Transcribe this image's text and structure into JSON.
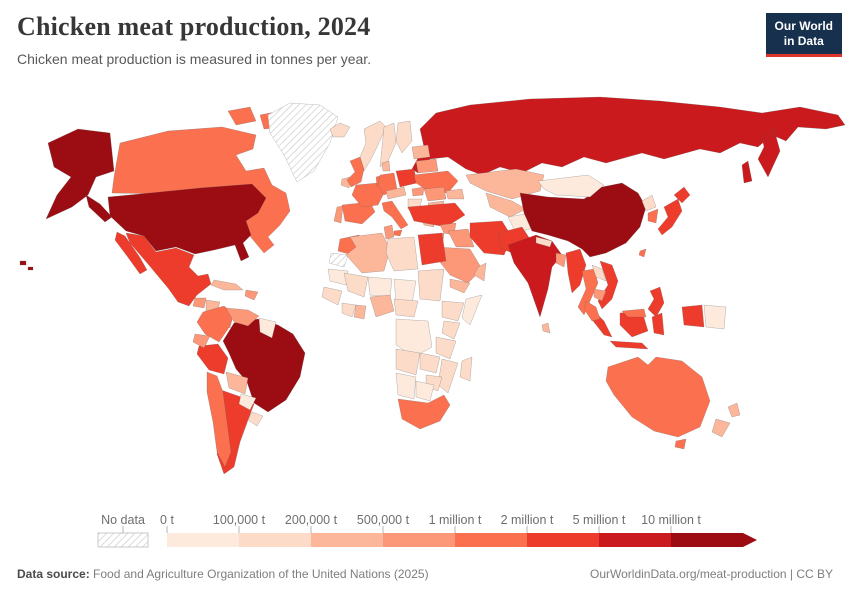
{
  "header": {
    "logo": {
      "line1": "Our World",
      "line2": "in Data",
      "bg_color": "#16304d",
      "accent_color": "#dd352b"
    }
  },
  "chart_data": {
    "type": "choropleth_world_map",
    "title": "Chicken meat production, 2024",
    "subtitle": "Chicken meat production is measured in tonnes per year.",
    "unit": "tonnes per year",
    "legend": {
      "no_data_label": "No data",
      "bin_edge_labels": [
        "0 t",
        "100,000 t",
        "200,000 t",
        "500,000 t",
        "1 million t",
        "2 million t",
        "5 million t",
        "10 million t"
      ],
      "bin_colors": [
        "#fdeadc",
        "#fcdbc8",
        "#fcb699",
        "#fc9778",
        "#fb7150",
        "#ee3c2c",
        "#ca1a1d",
        "#9b0d12"
      ],
      "open_ended_top": true
    },
    "countries": {
      "united_states": {
        "name": "United States",
        "bin": 7
      },
      "china": {
        "name": "China",
        "bin": 7
      },
      "brazil": {
        "name": "Brazil",
        "bin": 7
      },
      "russia": {
        "name": "Russia",
        "bin": 6
      },
      "india": {
        "name": "India",
        "bin": 6
      },
      "mexico": {
        "name": "Mexico",
        "bin": 5
      },
      "argentina": {
        "name": "Argentina",
        "bin": 5
      },
      "peru": {
        "name": "Peru",
        "bin": 5
      },
      "poland": {
        "name": "Poland",
        "bin": 5
      },
      "turkey": {
        "name": "Turkey",
        "bin": 5
      },
      "egypt": {
        "name": "Egypt",
        "bin": 5
      },
      "iran": {
        "name": "Iran",
        "bin": 5
      },
      "pakistan": {
        "name": "Pakistan",
        "bin": 5
      },
      "myanmar": {
        "name": "Myanmar",
        "bin": 5
      },
      "vietnam": {
        "name": "Vietnam",
        "bin": 5
      },
      "indonesia": {
        "name": "Indonesia",
        "bin": 5
      },
      "philippines": {
        "name": "Philippines",
        "bin": 5
      },
      "japan": {
        "name": "Japan",
        "bin": 5
      },
      "canada": {
        "name": "Canada",
        "bin": 4
      },
      "uk": {
        "name": "United Kingdom",
        "bin": 4
      },
      "france": {
        "name": "France",
        "bin": 4
      },
      "germany": {
        "name": "Germany",
        "bin": 4
      },
      "spain": {
        "name": "Spain",
        "bin": 4
      },
      "italy": {
        "name": "Italy",
        "bin": 4
      },
      "benelux": {
        "name": "Netherlands/Belgium",
        "bin": 4
      },
      "ukraine": {
        "name": "Ukraine",
        "bin": 4
      },
      "morocco": {
        "name": "Morocco",
        "bin": 4
      },
      "south_africa": {
        "name": "South Africa",
        "bin": 4
      },
      "colombia": {
        "name": "Colombia",
        "bin": 4
      },
      "chile": {
        "name": "Chile",
        "bin": 4
      },
      "thailand": {
        "name": "Thailand",
        "bin": 4
      },
      "south_korea": {
        "name": "South Korea",
        "bin": 4
      },
      "taiwan": {
        "name": "Taiwan",
        "bin": 4
      },
      "malaysia": {
        "name": "Malaysia",
        "bin": 4
      },
      "australia": {
        "name": "Australia",
        "bin": 4
      },
      "portugal": {
        "name": "Portugal",
        "bin": 3
      },
      "tunisia": {
        "name": "Tunisia",
        "bin": 3
      },
      "hungary": {
        "name": "Hungary",
        "bin": 3
      },
      "romania": {
        "name": "Romania",
        "bin": 3
      },
      "belarus": {
        "name": "Belarus",
        "bin": 3
      },
      "syria": {
        "name": "Syria",
        "bin": 3
      },
      "iraq": {
        "name": "Iraq",
        "bin": 3
      },
      "jordan_israel": {
        "name": "Israel/Jordan",
        "bin": 3
      },
      "saudi_arabia": {
        "name": "Saudi Arabia",
        "bin": 3
      },
      "bangladesh": {
        "name": "Bangladesh",
        "bin": 3
      },
      "cambodia": {
        "name": "Cambodia",
        "bin": 3
      },
      "venezuela": {
        "name": "Venezuela",
        "bin": 3
      },
      "ecuador": {
        "name": "Ecuador",
        "bin": 3
      },
      "guatemala": {
        "name": "Guatemala",
        "bin": 3
      },
      "costa_rica_panama": {
        "name": "Costa Rica/Panama",
        "bin": 3
      },
      "hispaniola": {
        "name": "Dominican Republic/Haiti",
        "bin": 3
      },
      "ireland": {
        "name": "Ireland",
        "bin": 2
      },
      "denmark": {
        "name": "Denmark",
        "bin": 2
      },
      "central_europe": {
        "name": "Czechia/Austria/Slovakia",
        "bin": 2
      },
      "greece": {
        "name": "Greece",
        "bin": 2
      },
      "baltics": {
        "name": "Baltic states",
        "bin": 2
      },
      "bulgaria": {
        "name": "Bulgaria",
        "bin": 2
      },
      "algeria": {
        "name": "Algeria",
        "bin": 2
      },
      "ghana": {
        "name": "Ghana",
        "bin": 2
      },
      "nigeria": {
        "name": "Nigeria",
        "bin": 2
      },
      "cuba": {
        "name": "Cuba",
        "bin": 2
      },
      "honduras_nicaragua": {
        "name": "Honduras/Nicaragua",
        "bin": 2
      },
      "bolivia": {
        "name": "Bolivia",
        "bin": 2
      },
      "new_zealand": {
        "name": "New Zealand",
        "bin": 2
      },
      "sri_lanka": {
        "name": "Sri Lanka",
        "bin": 2
      },
      "kazakhstan": {
        "name": "Kazakhstan",
        "bin": 2
      },
      "central_asia": {
        "name": "Uzbekistan/Turkmenistan",
        "bin": 2
      },
      "caucasus": {
        "name": "Caucasus states",
        "bin": 2
      },
      "yemen": {
        "name": "Yemen",
        "bin": 2
      },
      "oman": {
        "name": "Oman",
        "bin": 2
      },
      "iceland": {
        "name": "Iceland",
        "bin": 1
      },
      "norway": {
        "name": "Norway",
        "bin": 1
      },
      "sweden": {
        "name": "Sweden",
        "bin": 1
      },
      "finland": {
        "name": "Finland",
        "bin": 1
      },
      "balkans": {
        "name": "Western Balkans",
        "bin": 1
      },
      "uruguay": {
        "name": "Uruguay",
        "bin": 1
      },
      "libya": {
        "name": "Libya",
        "bin": 1
      },
      "sudan": {
        "name": "Sudan",
        "bin": 1
      },
      "mali": {
        "name": "Mali",
        "bin": 1
      },
      "senegal_guinea": {
        "name": "Senegal/Guinea",
        "bin": 1
      },
      "ivory_coast": {
        "name": "Côte d'Ivoire",
        "bin": 1
      },
      "cameroon_car": {
        "name": "Cameroon/Central Africa",
        "bin": 1
      },
      "ethiopia": {
        "name": "Ethiopia",
        "bin": 1
      },
      "kenya": {
        "name": "Kenya",
        "bin": 1
      },
      "tanzania": {
        "name": "Tanzania",
        "bin": 1
      },
      "angola": {
        "name": "Angola",
        "bin": 1
      },
      "zambia": {
        "name": "Zambia",
        "bin": 1
      },
      "mozambique": {
        "name": "Mozambique",
        "bin": 1
      },
      "zimbabwe": {
        "name": "Zimbabwe",
        "bin": 1
      },
      "madagascar": {
        "name": "Madagascar",
        "bin": 1
      },
      "nepal": {
        "name": "Nepal",
        "bin": 1
      },
      "north_korea": {
        "name": "North Korea",
        "bin": 1
      },
      "laos": {
        "name": "Laos",
        "bin": 1
      },
      "paraguay": {
        "name": "Paraguay",
        "bin": 0
      },
      "guyana_suriname": {
        "name": "Guyana/Suriname",
        "bin": 0
      },
      "afghanistan": {
        "name": "Afghanistan",
        "bin": 0
      },
      "mongolia": {
        "name": "Mongolia",
        "bin": 0
      },
      "papua_new_guinea": {
        "name": "Papua New Guinea",
        "bin": 0
      },
      "mauritania": {
        "name": "Mauritania",
        "bin": 0
      },
      "niger": {
        "name": "Niger",
        "bin": 0
      },
      "chad": {
        "name": "Chad",
        "bin": 0
      },
      "somalia": {
        "name": "Somalia",
        "bin": 0
      },
      "dr_congo": {
        "name": "Democratic Republic of Congo",
        "bin": 0
      },
      "namibia": {
        "name": "Namibia",
        "bin": 0
      },
      "botswana": {
        "name": "Botswana",
        "bin": 0
      },
      "greenland": {
        "name": "Greenland",
        "bin": "no_data"
      },
      "western_sahara": {
        "name": "Western Sahara",
        "bin": "no_data"
      }
    }
  },
  "footer": {
    "datasource_label": "Data source:",
    "datasource_value": "Food and Agriculture Organization of the United Nations (2025)",
    "link": "OurWorldinData.org/meat-production | CC BY"
  }
}
